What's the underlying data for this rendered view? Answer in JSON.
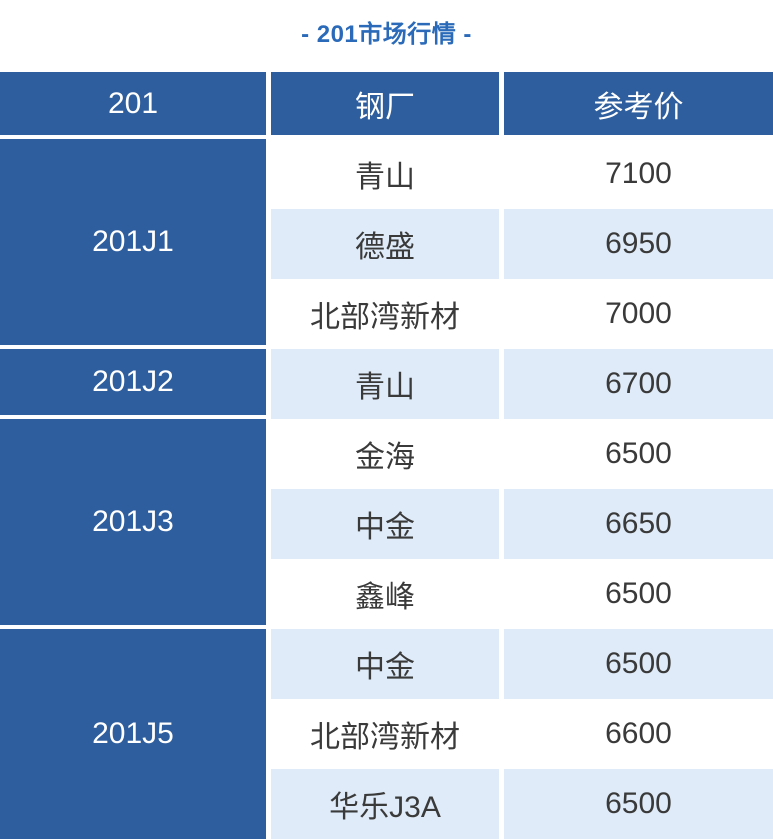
{
  "title": "- 201市场行情 -",
  "colors": {
    "header_bg": "#2e5e9e",
    "alt_row_bg": "#dfebf8",
    "title_text": "#2a6ab8",
    "body_text": "#3a3a3a",
    "header_text": "#ffffff"
  },
  "table": {
    "columns": [
      "201",
      "钢厂",
      "参考价"
    ],
    "groups": [
      {
        "grade": "201J1",
        "rows": [
          {
            "mill": "青山",
            "price": "7100"
          },
          {
            "mill": "德盛",
            "price": "6950"
          },
          {
            "mill": "北部湾新材",
            "price": "7000"
          }
        ]
      },
      {
        "grade": "201J2",
        "rows": [
          {
            "mill": "青山",
            "price": "6700"
          }
        ]
      },
      {
        "grade": "201J3",
        "rows": [
          {
            "mill": "金海",
            "price": "6500"
          },
          {
            "mill": "中金",
            "price": "6650"
          },
          {
            "mill": "鑫峰",
            "price": "6500"
          }
        ]
      },
      {
        "grade": "201J5",
        "rows": [
          {
            "mill": "中金",
            "price": "6500"
          },
          {
            "mill": "北部湾新材",
            "price": "6600"
          },
          {
            "mill": "华乐J3A",
            "price": "6500"
          }
        ]
      }
    ]
  },
  "chart_data": {
    "type": "table",
    "title": "- 201市场行情 -",
    "columns": [
      "201",
      "钢厂",
      "参考价"
    ],
    "rows": [
      [
        "201J1",
        "青山",
        7100
      ],
      [
        "201J1",
        "德盛",
        6950
      ],
      [
        "201J1",
        "北部湾新材",
        7000
      ],
      [
        "201J2",
        "青山",
        6700
      ],
      [
        "201J3",
        "金海",
        6500
      ],
      [
        "201J3",
        "中金",
        6650
      ],
      [
        "201J3",
        "鑫峰",
        6500
      ],
      [
        "201J5",
        "中金",
        6500
      ],
      [
        "201J5",
        "北部湾新材",
        6600
      ],
      [
        "201J5",
        "华乐J3A",
        6500
      ]
    ]
  }
}
